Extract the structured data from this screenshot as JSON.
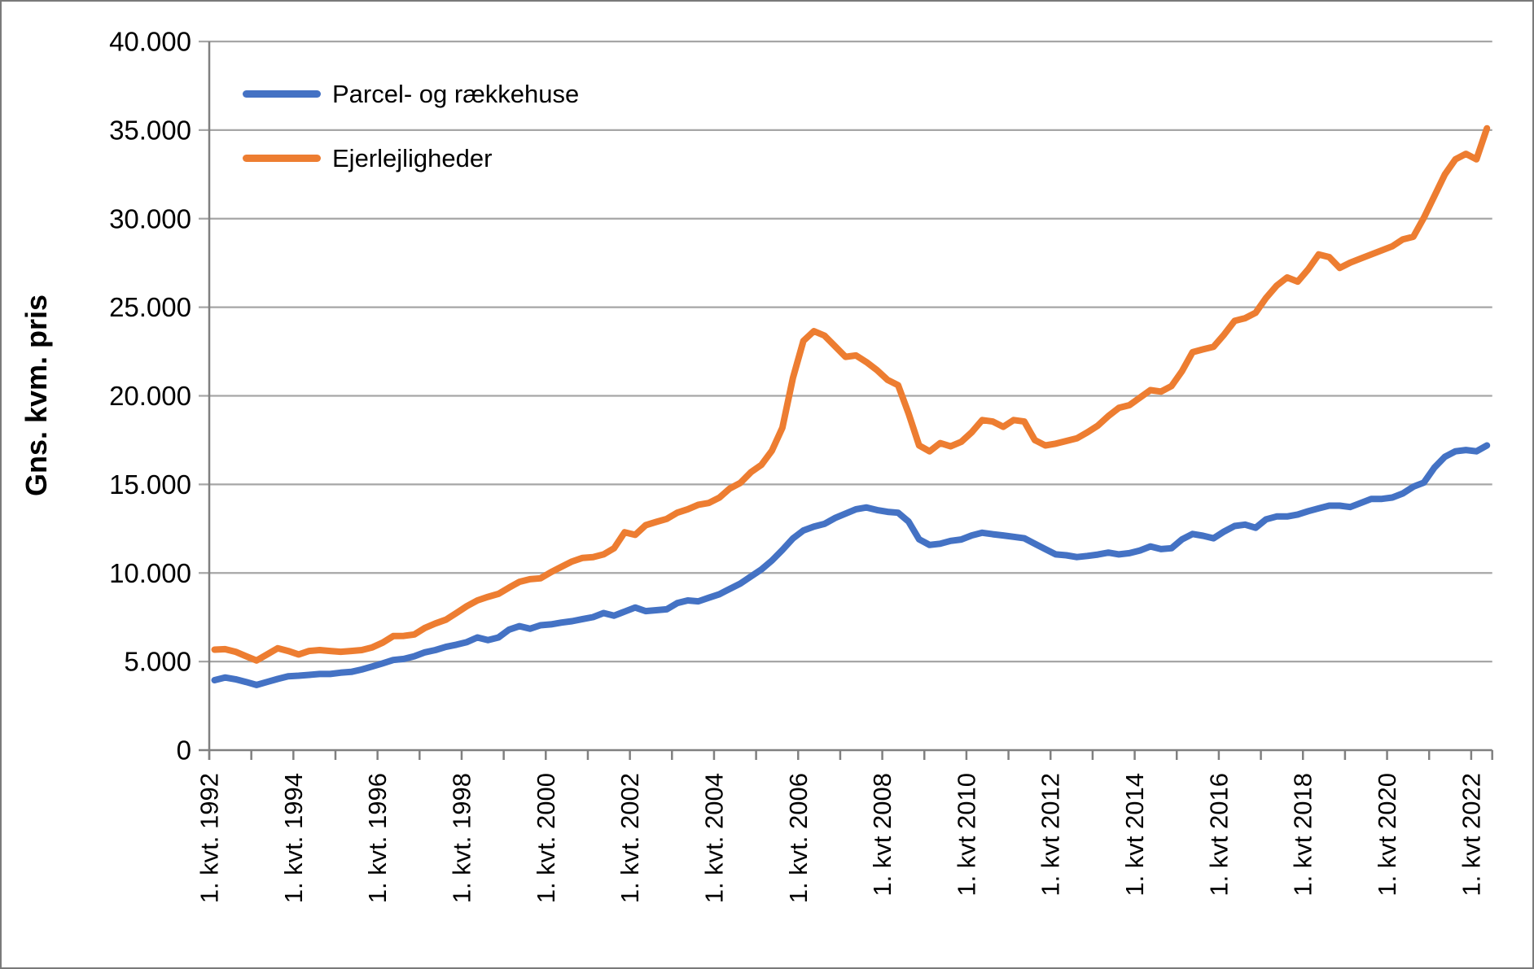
{
  "chart_data": {
    "type": "line",
    "title": "",
    "ylabel": "Gns. kvm. pris",
    "xlabel": "",
    "ylim": [
      0,
      40000
    ],
    "grid": "horizontal",
    "legend_position": "inside-top-left",
    "x_axis": {
      "start_year": 1992,
      "start_quarter": 1,
      "end_year": 2022,
      "end_quarter": 2,
      "points": 122,
      "tick_every_quarters": 4,
      "label_every_ticks": 2
    },
    "x_tick_labels": [
      "1. kvt. 1992",
      "1. kvt. 1994",
      "1. kvt. 1996",
      "1. kvt. 1998",
      "1. kvt. 2000",
      "1. kvt. 2002",
      "1. kvt. 2004",
      "1. kvt. 2006",
      "1. kvt 2008",
      "1. kvt 2010",
      "1. kvt 2012",
      "1. kvt 2014",
      "1. kvt 2016",
      "1. kvt 2018",
      "1. kvt 2020",
      "1. kvt 2022"
    ],
    "y_ticks": [
      {
        "value": 0,
        "label": "0"
      },
      {
        "value": 5000,
        "label": "5.000"
      },
      {
        "value": 10000,
        "label": "10.000"
      },
      {
        "value": 15000,
        "label": "15.000"
      },
      {
        "value": 20000,
        "label": "20.000"
      },
      {
        "value": 25000,
        "label": "25.000"
      },
      {
        "value": 30000,
        "label": "30.000"
      },
      {
        "value": 35000,
        "label": "35.000"
      },
      {
        "value": 40000,
        "label": "40.000"
      }
    ],
    "series": [
      {
        "name": "Parcel- og rækkehuse",
        "color": "#4472C4",
        "values": [
          3950,
          4100,
          4000,
          3850,
          3680,
          3850,
          4020,
          4170,
          4200,
          4250,
          4300,
          4300,
          4370,
          4420,
          4550,
          4720,
          4900,
          5090,
          5150,
          5300,
          5520,
          5650,
          5830,
          5950,
          6100,
          6360,
          6210,
          6360,
          6800,
          7000,
          6850,
          7050,
          7100,
          7200,
          7280,
          7400,
          7510,
          7740,
          7590,
          7820,
          8050,
          7850,
          7900,
          7950,
          8300,
          8450,
          8400,
          8600,
          8800,
          9100,
          9400,
          9800,
          10200,
          10700,
          11300,
          11950,
          12400,
          12620,
          12770,
          13100,
          13350,
          13600,
          13700,
          13550,
          13450,
          13400,
          12900,
          11900,
          11580,
          11650,
          11810,
          11890,
          12120,
          12270,
          12190,
          12120,
          12040,
          11960,
          11650,
          11350,
          11050,
          11000,
          10900,
          10960,
          11040,
          11150,
          11050,
          11120,
          11270,
          11500,
          11350,
          11400,
          11900,
          12200,
          12100,
          11960,
          12340,
          12650,
          12730,
          12550,
          13030,
          13190,
          13190,
          13300,
          13490,
          13650,
          13800,
          13800,
          13720,
          13950,
          14180,
          14180,
          14260,
          14490,
          14870,
          15100,
          15950,
          16560,
          16870,
          16940,
          16870,
          17200
        ]
      },
      {
        "name": "Ejerlejligheder",
        "color": "#ED7D31",
        "values": [
          5670,
          5700,
          5550,
          5300,
          5060,
          5400,
          5750,
          5600,
          5400,
          5600,
          5650,
          5600,
          5550,
          5600,
          5650,
          5800,
          6070,
          6440,
          6450,
          6530,
          6900,
          7150,
          7360,
          7740,
          8130,
          8450,
          8650,
          8820,
          9170,
          9500,
          9650,
          9700,
          10050,
          10350,
          10650,
          10850,
          10900,
          11050,
          11400,
          12300,
          12150,
          12700,
          12880,
          13050,
          13400,
          13600,
          13850,
          13950,
          14250,
          14770,
          15080,
          15690,
          16100,
          16900,
          18200,
          21000,
          23100,
          23650,
          23400,
          22800,
          22200,
          22280,
          21900,
          21450,
          20900,
          20600,
          19000,
          17200,
          16870,
          17330,
          17150,
          17400,
          17940,
          18630,
          18550,
          18250,
          18630,
          18550,
          17500,
          17200,
          17300,
          17450,
          17600,
          17940,
          18320,
          18860,
          19320,
          19470,
          19900,
          20320,
          20240,
          20550,
          21390,
          22460,
          22620,
          22770,
          23460,
          24230,
          24380,
          24690,
          25530,
          26220,
          26680,
          26450,
          27140,
          27980,
          27830,
          27220,
          27520,
          27750,
          27980,
          28210,
          28440,
          28830,
          28980,
          30050,
          31280,
          32500,
          33350,
          33660,
          33350,
          35100
        ]
      }
    ],
    "styles": {
      "background": "#ffffff",
      "frame_color": "#7a7a7a",
      "grid_color": "#a6a6a6",
      "axis_color": "#808080",
      "text_color": "#000000"
    }
  }
}
